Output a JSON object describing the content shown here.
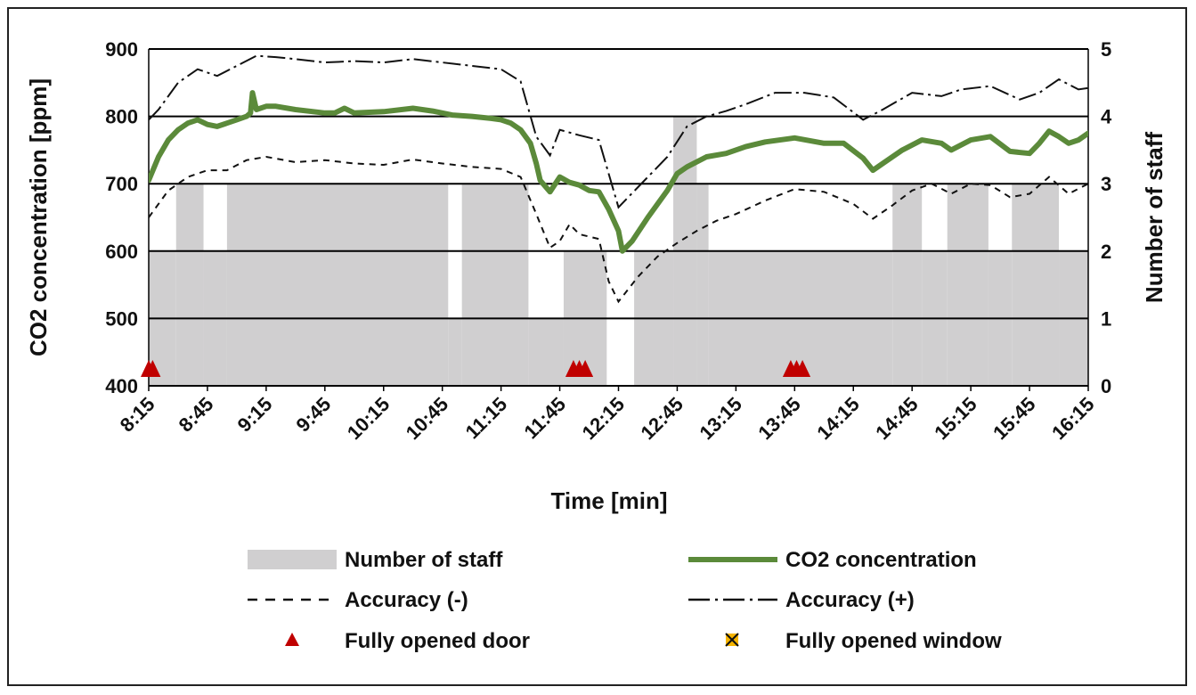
{
  "chart_data": {
    "type": "line",
    "x_axis": {
      "label": "Time [min]",
      "tick_labels": [
        "8:15",
        "8:45",
        "9:15",
        "9:45",
        "10:15",
        "10:45",
        "11:15",
        "11:45",
        "12:15",
        "12:45",
        "13:15",
        "13:45",
        "14:15",
        "14:45",
        "15:15",
        "15:45",
        "16:15"
      ],
      "range_minutes": [
        0,
        480
      ]
    },
    "y_left": {
      "label": "CO2 concentration [ppm]",
      "range": [
        400,
        900
      ],
      "ticks": [
        400,
        500,
        600,
        700,
        800,
        900
      ]
    },
    "y_right": {
      "label": "Number of staff",
      "range": [
        0,
        5
      ],
      "ticks": [
        0,
        1,
        2,
        3,
        4,
        5
      ]
    },
    "grid": "horizontal",
    "legend_placement": "bottom",
    "staff_series": {
      "name": "Number of staff",
      "color": "#d0cfd0",
      "steps": [
        {
          "start": "8:15",
          "end": "8:29",
          "staff": 2
        },
        {
          "start": "8:29",
          "end": "8:43",
          "staff": 3
        },
        {
          "start": "8:43",
          "end": "8:55",
          "staff": 2
        },
        {
          "start": "8:55",
          "end": "10:48",
          "staff": 3
        },
        {
          "start": "10:48",
          "end": "10:55",
          "staff": 1
        },
        {
          "start": "10:55",
          "end": "11:29",
          "staff": 3
        },
        {
          "start": "11:29",
          "end": "11:47",
          "staff": 1
        },
        {
          "start": "11:47",
          "end": "12:09",
          "staff": 2
        },
        {
          "start": "12:09",
          "end": "12:23",
          "staff": 0
        },
        {
          "start": "12:23",
          "end": "12:43",
          "staff": 2
        },
        {
          "start": "12:43",
          "end": "12:55",
          "staff": 4
        },
        {
          "start": "12:55",
          "end": "13:01",
          "staff": 3
        },
        {
          "start": "13:01",
          "end": "14:35",
          "staff": 2
        },
        {
          "start": "14:35",
          "end": "14:50",
          "staff": 3
        },
        {
          "start": "14:50",
          "end": "15:03",
          "staff": 2
        },
        {
          "start": "15:03",
          "end": "15:24",
          "staff": 3
        },
        {
          "start": "15:24",
          "end": "15:36",
          "staff": 2
        },
        {
          "start": "15:36",
          "end": "16:00",
          "staff": 3
        },
        {
          "start": "16:00",
          "end": "16:15",
          "staff": 2
        }
      ]
    },
    "co2_series": {
      "name": "CO2 concentration",
      "color": "#5b8a3a",
      "points": [
        [
          "8:15",
          705
        ],
        [
          "8:20",
          740
        ],
        [
          "8:25",
          765
        ],
        [
          "8:30",
          780
        ],
        [
          "8:35",
          790
        ],
        [
          "8:40",
          795
        ],
        [
          "8:45",
          788
        ],
        [
          "8:50",
          785
        ],
        [
          "8:55",
          790
        ],
        [
          "9:00",
          795
        ],
        [
          "9:05",
          800
        ],
        [
          "9:07",
          805
        ],
        [
          "9:08",
          835
        ],
        [
          "9:10",
          810
        ],
        [
          "9:15",
          815
        ],
        [
          "9:20",
          815
        ],
        [
          "9:30",
          810
        ],
        [
          "9:45",
          805
        ],
        [
          "9:50",
          805
        ],
        [
          "9:55",
          812
        ],
        [
          "10:00",
          805
        ],
        [
          "10:15",
          807
        ],
        [
          "10:30",
          812
        ],
        [
          "10:40",
          808
        ],
        [
          "10:50",
          802
        ],
        [
          "11:00",
          800
        ],
        [
          "11:10",
          797
        ],
        [
          "11:15",
          795
        ],
        [
          "11:20",
          790
        ],
        [
          "11:25",
          780
        ],
        [
          "11:30",
          760
        ],
        [
          "11:33",
          730
        ],
        [
          "11:35",
          705
        ],
        [
          "11:40",
          688
        ],
        [
          "11:45",
          710
        ],
        [
          "11:50",
          702
        ],
        [
          "11:55",
          698
        ],
        [
          "12:00",
          690
        ],
        [
          "12:05",
          688
        ],
        [
          "12:10",
          662
        ],
        [
          "12:15",
          630
        ],
        [
          "12:17",
          600
        ],
        [
          "12:22",
          615
        ],
        [
          "12:30",
          650
        ],
        [
          "12:40",
          690
        ],
        [
          "12:45",
          715
        ],
        [
          "12:50",
          725
        ],
        [
          "13:00",
          740
        ],
        [
          "13:10",
          745
        ],
        [
          "13:20",
          755
        ],
        [
          "13:30",
          762
        ],
        [
          "13:45",
          768
        ],
        [
          "14:00",
          760
        ],
        [
          "14:10",
          760
        ],
        [
          "14:20",
          738
        ],
        [
          "14:25",
          720
        ],
        [
          "14:30",
          730
        ],
        [
          "14:40",
          750
        ],
        [
          "14:50",
          765
        ],
        [
          "15:00",
          760
        ],
        [
          "15:05",
          750
        ],
        [
          "15:15",
          765
        ],
        [
          "15:25",
          770
        ],
        [
          "15:35",
          748
        ],
        [
          "15:45",
          745
        ],
        [
          "15:50",
          760
        ],
        [
          "15:55",
          778
        ],
        [
          "16:00",
          770
        ],
        [
          "16:05",
          760
        ],
        [
          "16:10",
          765
        ],
        [
          "16:15",
          775
        ]
      ]
    },
    "accuracy_minus": {
      "name": "Accuracy (-)",
      "points": [
        [
          "8:15",
          650
        ],
        [
          "8:25",
          690
        ],
        [
          "8:35",
          710
        ],
        [
          "8:45",
          720
        ],
        [
          "8:55",
          720
        ],
        [
          "9:05",
          735
        ],
        [
          "9:15",
          740
        ],
        [
          "9:30",
          732
        ],
        [
          "9:45",
          735
        ],
        [
          "10:00",
          730
        ],
        [
          "10:15",
          728
        ],
        [
          "10:30",
          736
        ],
        [
          "10:45",
          730
        ],
        [
          "11:00",
          725
        ],
        [
          "11:15",
          722
        ],
        [
          "11:25",
          710
        ],
        [
          "11:33",
          655
        ],
        [
          "11:40",
          605
        ],
        [
          "11:45",
          615
        ],
        [
          "11:50",
          640
        ],
        [
          "11:55",
          625
        ],
        [
          "12:05",
          618
        ],
        [
          "12:10",
          555
        ],
        [
          "12:15",
          525
        ],
        [
          "12:25",
          562
        ],
        [
          "12:35",
          592
        ],
        [
          "12:45",
          612
        ],
        [
          "12:55",
          630
        ],
        [
          "13:05",
          645
        ],
        [
          "13:15",
          655
        ],
        [
          "13:30",
          675
        ],
        [
          "13:45",
          692
        ],
        [
          "14:00",
          688
        ],
        [
          "14:15",
          670
        ],
        [
          "14:25",
          648
        ],
        [
          "14:35",
          668
        ],
        [
          "14:45",
          690
        ],
        [
          "14:55",
          700
        ],
        [
          "15:05",
          685
        ],
        [
          "15:15",
          700
        ],
        [
          "15:25",
          698
        ],
        [
          "15:35",
          680
        ],
        [
          "15:45",
          685
        ],
        [
          "15:55",
          710
        ],
        [
          "16:05",
          685
        ],
        [
          "16:15",
          700
        ]
      ]
    },
    "accuracy_plus": {
      "name": "Accuracy (+)",
      "points": [
        [
          "8:15",
          795
        ],
        [
          "8:20",
          810
        ],
        [
          "8:30",
          850
        ],
        [
          "8:40",
          870
        ],
        [
          "8:50",
          860
        ],
        [
          "9:00",
          875
        ],
        [
          "9:10",
          890
        ],
        [
          "9:20",
          888
        ],
        [
          "9:30",
          885
        ],
        [
          "9:45",
          880
        ],
        [
          "10:00",
          882
        ],
        [
          "10:15",
          880
        ],
        [
          "10:30",
          885
        ],
        [
          "10:45",
          880
        ],
        [
          "11:00",
          875
        ],
        [
          "11:15",
          870
        ],
        [
          "11:25",
          852
        ],
        [
          "11:33",
          770
        ],
        [
          "11:40",
          742
        ],
        [
          "11:45",
          780
        ],
        [
          "11:55",
          772
        ],
        [
          "12:05",
          765
        ],
        [
          "12:15",
          665
        ],
        [
          "12:20",
          680
        ],
        [
          "12:30",
          710
        ],
        [
          "12:40",
          740
        ],
        [
          "12:50",
          785
        ],
        [
          "13:00",
          800
        ],
        [
          "13:10",
          808
        ],
        [
          "13:20",
          818
        ],
        [
          "13:35",
          835
        ],
        [
          "13:50",
          835
        ],
        [
          "14:05",
          828
        ],
        [
          "14:20",
          795
        ],
        [
          "14:30",
          810
        ],
        [
          "14:45",
          835
        ],
        [
          "15:00",
          830
        ],
        [
          "15:10",
          840
        ],
        [
          "15:25",
          845
        ],
        [
          "15:40",
          825
        ],
        [
          "15:50",
          835
        ],
        [
          "16:00",
          855
        ],
        [
          "16:10",
          840
        ],
        [
          "16:15",
          842
        ]
      ]
    },
    "door_events": {
      "name": "Fully opened door",
      "color": "#c00000",
      "times": [
        "8:15",
        "8:17",
        "11:52",
        "11:55",
        "11:58",
        "13:43",
        "13:46",
        "13:49"
      ]
    },
    "window_events": {
      "name": "Fully opened window",
      "color": "#f5b400",
      "times": []
    },
    "legend": [
      {
        "key": "staff",
        "label": "Number of staff"
      },
      {
        "key": "co2",
        "label": "CO2 concentration"
      },
      {
        "key": "acc_minus",
        "label": "Accuracy (-)"
      },
      {
        "key": "acc_plus",
        "label": "Accuracy (+)"
      },
      {
        "key": "door",
        "label": "Fully opened door"
      },
      {
        "key": "window",
        "label": "Fully opened window"
      }
    ]
  }
}
